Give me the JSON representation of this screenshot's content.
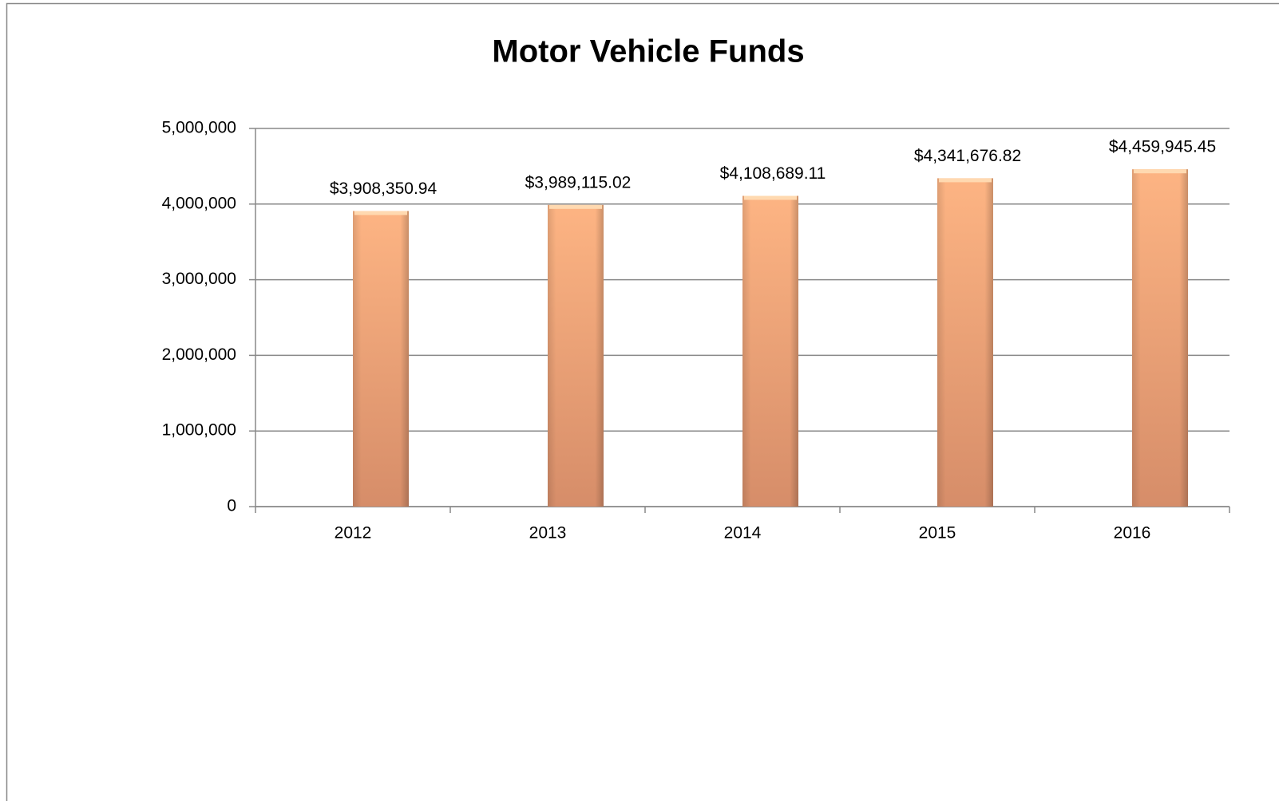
{
  "chart_data": {
    "type": "bar",
    "title": "Motor Vehicle Funds",
    "categories": [
      "2012",
      "2013",
      "2014",
      "2015",
      "2016"
    ],
    "values": [
      3908350.94,
      3989115.02,
      4108689.11,
      4341676.82,
      4459945.45
    ],
    "value_labels": [
      "$3,908,350.94",
      "$3,989,115.02",
      "$4,108,689.11",
      "$4,341,676.82",
      "$4,459,945.45"
    ],
    "color": "#f2a574",
    "ylim": [
      0,
      5000000
    ],
    "yticks": [
      0,
      {
        "value": 1000000,
        "label": "1,000,000"
      },
      {
        "value": 2000000,
        "label": "2,000,000"
      },
      {
        "value": 3000000,
        "label": "3,000,000"
      },
      {
        "value": 4000000,
        "label": "4,000,000"
      },
      {
        "value": 5000000,
        "label": "5,000,000"
      }
    ],
    "grid": true
  }
}
